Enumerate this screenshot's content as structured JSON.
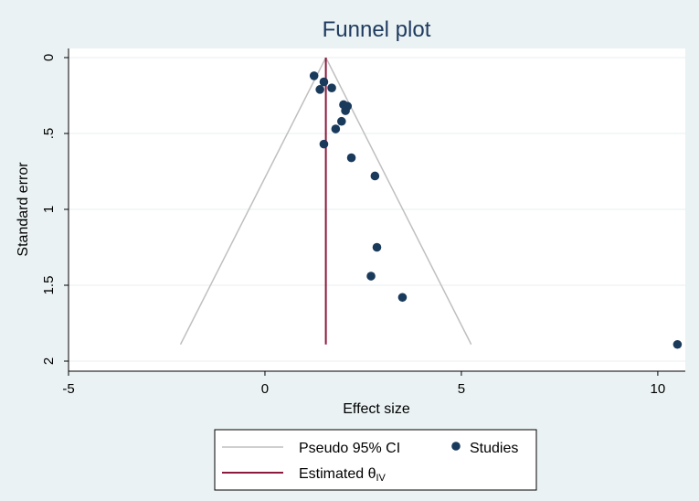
{
  "chart_data": {
    "type": "scatter",
    "title": "Funnel plot",
    "xlabel": "Effect size",
    "ylabel": "Standard error",
    "xlim": [
      -5,
      10.7
    ],
    "ylim": [
      0,
      2
    ],
    "y_reversed": true,
    "x_ticks": [
      "-5",
      "0",
      "5",
      "10"
    ],
    "x_tick_values": [
      -5,
      0,
      5,
      10
    ],
    "y_ticks": [
      "0",
      ".5",
      "1",
      "1.5",
      "2"
    ],
    "y_tick_values": [
      0,
      0.5,
      1,
      1.5,
      2
    ],
    "grid": true,
    "legend_position": "bottom",
    "pooled_estimate": 1.55,
    "ci_lines": {
      "name": "Pseudo 95% CI",
      "apex": [
        1.55,
        0
      ],
      "bottom_left": [
        -2.15,
        1.89
      ],
      "bottom_right": [
        5.25,
        1.89
      ]
    },
    "estimate_line": {
      "name": "Estimated θIV",
      "name_main": "Estimated θ",
      "name_sub": "IV",
      "x": 1.55,
      "y_range": [
        0,
        1.89
      ]
    },
    "series": [
      {
        "name": "Studies",
        "points": [
          {
            "x": 1.25,
            "y": 0.12
          },
          {
            "x": 1.5,
            "y": 0.16
          },
          {
            "x": 1.4,
            "y": 0.21
          },
          {
            "x": 1.7,
            "y": 0.2
          },
          {
            "x": 2.0,
            "y": 0.31
          },
          {
            "x": 2.1,
            "y": 0.32
          },
          {
            "x": 2.05,
            "y": 0.35
          },
          {
            "x": 1.95,
            "y": 0.42
          },
          {
            "x": 1.8,
            "y": 0.47
          },
          {
            "x": 1.5,
            "y": 0.57
          },
          {
            "x": 2.2,
            "y": 0.66
          },
          {
            "x": 2.8,
            "y": 0.78
          },
          {
            "x": 2.85,
            "y": 1.25
          },
          {
            "x": 2.7,
            "y": 1.44
          },
          {
            "x": 3.5,
            "y": 1.58
          },
          {
            "x": 10.5,
            "y": 1.89
          }
        ]
      }
    ]
  },
  "colors": {
    "background": "#eaf2f3",
    "plot_area": "#ffffff",
    "grid": "#e8eef0",
    "ci_line": "#bfbfbf",
    "estimate_line": "#8b1a3c",
    "points": "#1a3a5c",
    "title": "#1e3a5f"
  }
}
